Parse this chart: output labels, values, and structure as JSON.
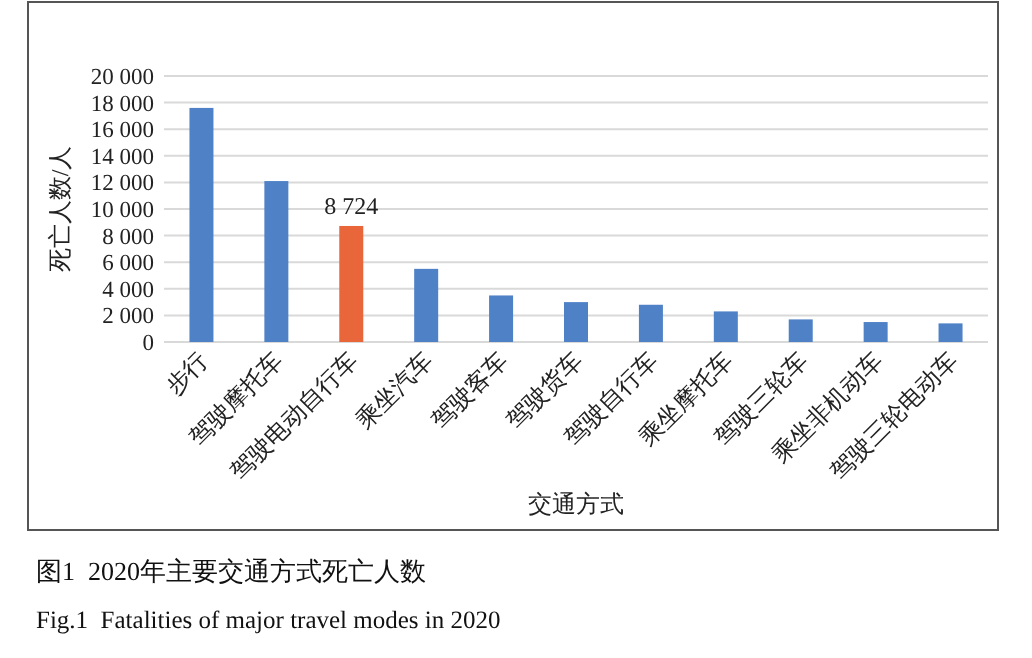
{
  "chart_data": {
    "type": "bar",
    "xlabel": "交通方式",
    "ylabel": "死亡人数/人",
    "categories": [
      "步行",
      "驾驶摩托车",
      "驾驶电动自行车",
      "乘坐汽车",
      "驾驶客车",
      "驾驶货车",
      "驾驶自行车",
      "乘坐摩托车",
      "驾驶三轮车",
      "乘坐非机动车",
      "驾驶三轮电动车"
    ],
    "values": [
      17600,
      12100,
      8724,
      5500,
      3500,
      3000,
      2800,
      2300,
      1700,
      1500,
      1400
    ],
    "colors": [
      "#4f81c7",
      "#4f81c7",
      "#e8663a",
      "#4f81c7",
      "#4f81c7",
      "#4f81c7",
      "#4f81c7",
      "#4f81c7",
      "#4f81c7",
      "#4f81c7",
      "#4f81c7"
    ],
    "value_labels": [
      null,
      null,
      "8 724",
      null,
      null,
      null,
      null,
      null,
      null,
      null,
      null
    ],
    "ylim": [
      0,
      20000
    ],
    "yticks": [
      {
        "value": 0,
        "label": "0"
      },
      {
        "value": 2000,
        "label": "2 000"
      },
      {
        "value": 4000,
        "label": "4 000"
      },
      {
        "value": 6000,
        "label": "6 000"
      },
      {
        "value": 8000,
        "label": "8 000"
      },
      {
        "value": 10000,
        "label": "10 000"
      },
      {
        "value": 12000,
        "label": "12 000"
      },
      {
        "value": 14000,
        "label": "14 000"
      },
      {
        "value": 16000,
        "label": "16 000"
      },
      {
        "value": 18000,
        "label": "18 000"
      },
      {
        "value": 20000,
        "label": "20 000"
      }
    ],
    "grid": "y",
    "annotations": [
      "图1  2020年主要交通方式死亡人数",
      "Fig.1  Fatalities of major travel modes in 2020"
    ]
  }
}
